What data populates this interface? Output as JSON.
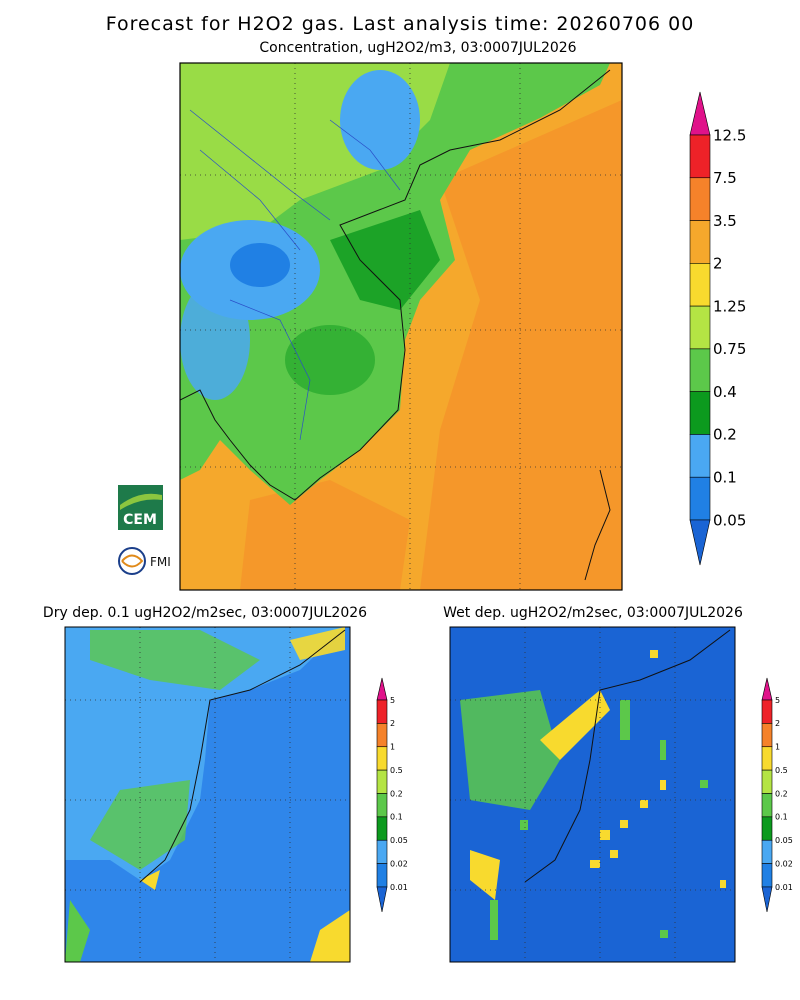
{
  "header": {
    "title": "Forecast for H2O2 gas. Last analysis time: 20260706 00"
  },
  "main_panel": {
    "subtitle": "Concentration, ugH2O2/m3, 03:0007JUL2026",
    "scale": {
      "labels": [
        "12.5",
        "7.5",
        "3.5",
        "2",
        "1.25",
        "0.75",
        "0.4",
        "0.2",
        "0.1",
        "0.05"
      ],
      "colors": [
        "#e0128a",
        "#ee2228",
        "#f5822a",
        "#f5a82c",
        "#f8da2e",
        "#b4e444",
        "#5cc84a",
        "#0c9a1e",
        "#4aa8f2",
        "#2080e4",
        "#1a64d4"
      ]
    }
  },
  "dry_panel": {
    "subtitle": "Dry dep. 0.1 ugH2O2/m2sec, 03:0007JUL2026",
    "scale": {
      "labels": [
        "5",
        "2",
        "1",
        "0.5",
        "0.2",
        "0.1",
        "0.05",
        "0.02",
        "0.01"
      ],
      "colors": [
        "#e0128a",
        "#ee2228",
        "#f5822a",
        "#f8da2e",
        "#b4e444",
        "#5cc84a",
        "#0c9a1e",
        "#4aa8f2",
        "#2080e4",
        "#1a64d4"
      ]
    }
  },
  "wet_panel": {
    "subtitle": "Wet dep. ugH2O2/m2sec, 03:0007JUL2026",
    "scale": {
      "labels": [
        "5",
        "2",
        "1",
        "0.5",
        "0.2",
        "0.1",
        "0.05",
        "0.02",
        "0.01"
      ],
      "colors": [
        "#e0128a",
        "#ee2228",
        "#f5822a",
        "#f8da2e",
        "#b4e444",
        "#5cc84a",
        "#0c9a1e",
        "#4aa8f2",
        "#2080e4",
        "#1a64d4"
      ]
    }
  },
  "logos": {
    "cem": "CEM",
    "fmi": "FMI"
  }
}
